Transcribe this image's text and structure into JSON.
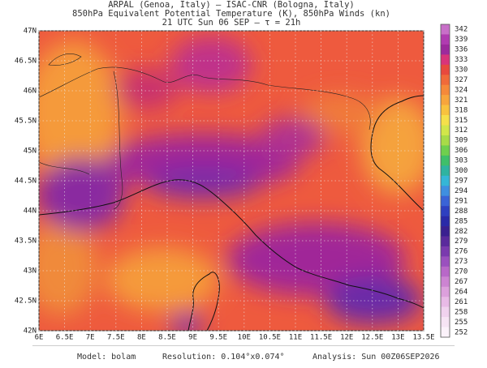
{
  "header": {
    "line1": "ARPAL (Genoa, Italy)  —  ISAC-CNR (Bologna, Italy)",
    "line2": "850hPa Equivalent Potential Temperature (K), 850hPa Winds (kn)",
    "line3": "21 UTC Sun 06 SEP  —  τ = 21h"
  },
  "map": {
    "lon_lim": [
      6,
      13.5
    ],
    "lat_lim": [
      42,
      47
    ],
    "lon_ticks": [
      {
        "value": 6,
        "label": "6E"
      },
      {
        "value": 6.5,
        "label": "6.5E"
      },
      {
        "value": 7,
        "label": "7E"
      },
      {
        "value": 7.5,
        "label": "7.5E"
      },
      {
        "value": 8,
        "label": "8E"
      },
      {
        "value": 8.5,
        "label": "8.5E"
      },
      {
        "value": 9,
        "label": "9E"
      },
      {
        "value": 9.5,
        "label": "9.5E"
      },
      {
        "value": 10,
        "label": "10E"
      },
      {
        "value": 10.5,
        "label": "10.5E"
      },
      {
        "value": 11,
        "label": "11E"
      },
      {
        "value": 11.5,
        "label": "11.5E"
      },
      {
        "value": 12,
        "label": "12E"
      },
      {
        "value": 12.5,
        "label": "12.5E"
      },
      {
        "value": 13,
        "label": "13E"
      },
      {
        "value": 13.5,
        "label": "13.5E"
      }
    ],
    "lat_ticks": [
      {
        "value": 42,
        "label": "42N"
      },
      {
        "value": 42.5,
        "label": "42.5N"
      },
      {
        "value": 43,
        "label": "43N"
      },
      {
        "value": 43.5,
        "label": "43.5N"
      },
      {
        "value": 44,
        "label": "44N"
      },
      {
        "value": 44.5,
        "label": "44.5N"
      },
      {
        "value": 45,
        "label": "45N"
      },
      {
        "value": 45.5,
        "label": "45.5N"
      },
      {
        "value": 46,
        "label": "46N"
      },
      {
        "value": 46.5,
        "label": "46.5N"
      },
      {
        "value": 47,
        "label": "47N"
      }
    ]
  },
  "colorbar": {
    "ticks": [
      342,
      339,
      336,
      333,
      330,
      327,
      324,
      321,
      318,
      315,
      312,
      309,
      306,
      303,
      300,
      297,
      294,
      291,
      288,
      285,
      282,
      279,
      276,
      273,
      270,
      267,
      264,
      261,
      258,
      255,
      252
    ],
    "colors": [
      "#c86fc8",
      "#b03cb0",
      "#9c2a9c",
      "#d8347a",
      "#e8493e",
      "#f06a3a",
      "#f5893a",
      "#f7a53c",
      "#f8c23e",
      "#f5e04a",
      "#d2e64a",
      "#a8db48",
      "#6fcf4e",
      "#3fbf6a",
      "#2fb3a0",
      "#35b6d6",
      "#3f8fe0",
      "#3a63d6",
      "#2e40c0",
      "#2a2aa8",
      "#3a2090",
      "#5a2a9c",
      "#7a3aae",
      "#9a50be",
      "#b868c8",
      "#cc84d2",
      "#dca0dc",
      "#e8bae6",
      "#f0d2ee",
      "#f6e4f4",
      "#fbf2fa"
    ]
  },
  "footer": {
    "model": "Model: bolam",
    "resolution": "Resolution: 0.104°x0.074°",
    "analysis": "Analysis: Sun 00Z06SEP2026"
  }
}
